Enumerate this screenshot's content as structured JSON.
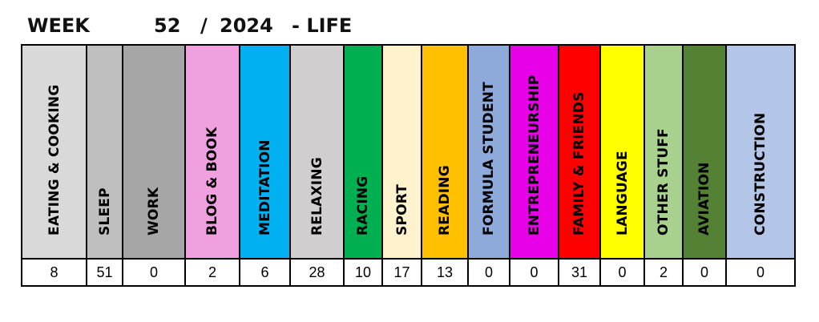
{
  "header": {
    "week_label": "WEEK",
    "week_number": "52",
    "separator": "/",
    "year": "2024",
    "section": "- LIFE"
  },
  "categories": [
    {
      "label": "EATING & COOKING",
      "value": "8",
      "color": "#d9d9d9"
    },
    {
      "label": "SLEEP",
      "value": "51",
      "color": "#bfbfbf"
    },
    {
      "label": "WORK",
      "value": "0",
      "color": "#a6a6a6"
    },
    {
      "label": "BLOG & BOOK",
      "value": "2",
      "color": "#f0a0df"
    },
    {
      "label": "MEDITATION",
      "value": "6",
      "color": "#00b0f0"
    },
    {
      "label": "RELAXING",
      "value": "28",
      "color": "#d0cece"
    },
    {
      "label": "RACING",
      "value": "10",
      "color": "#00b050"
    },
    {
      "label": "SPORT",
      "value": "17",
      "color": "#fff2cc"
    },
    {
      "label": "READING",
      "value": "13",
      "color": "#ffc000"
    },
    {
      "label": "FORMULA STUDENT",
      "value": "0",
      "color": "#8eaadb"
    },
    {
      "label": "ENTREPRENEURSHIP",
      "value": "0",
      "color": "#e800e8"
    },
    {
      "label": "FAMILY & FRIENDS",
      "value": "31",
      "color": "#ff0000"
    },
    {
      "label": "LANGUAGE",
      "value": "0",
      "color": "#ffff00"
    },
    {
      "label": "OTHER STUFF",
      "value": "2",
      "color": "#a9d18e"
    },
    {
      "label": "AVIATION",
      "value": "0",
      "color": "#548235"
    },
    {
      "label": "CONSTRUCTION",
      "value": "0",
      "color": "#b4c6e7"
    }
  ]
}
